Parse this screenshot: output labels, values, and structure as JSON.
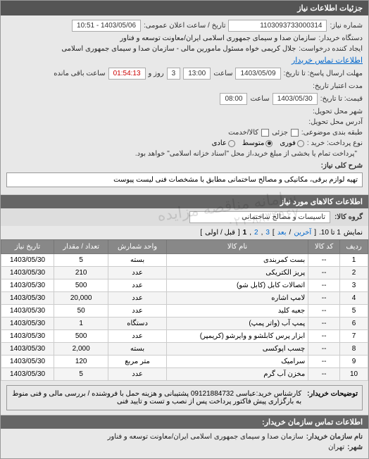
{
  "header": {
    "title": "جزئیات اطلاعات نیاز"
  },
  "info": {
    "req_no_label": "شماره نیاز:",
    "req_no": "1103093733000314",
    "announce_label": "تاریخ / ساعت اعلان عمومی:",
    "announce": "1403/05/06 - 10:51",
    "buyer_label": "دستگاه خریدار:",
    "buyer": "سازمان صدا و سیمای جمهوری اسلامی ایران/معاونت توسعه و فناور",
    "requester_label": "ایجاد کننده درخواست:",
    "requester": "جلال کریمی خواه مسئول مامورین مالی - سازمان صدا و سیمای جمهوری اسلامی",
    "contact_link": "اطلاعات تماس خریدار",
    "deadline_label": "مهلت ارسال پاسخ: تا تاریخ:",
    "deadline_date": "1403/05/09",
    "time_label": "ساعت",
    "deadline_time": "13:00",
    "days_remaining": "3",
    "days_label": "روز و",
    "time_remaining": "01:54:13",
    "remaining_label": "ساعت باقی مانده",
    "validity_label": "مدت اعتبار تاریخ:",
    "price_label": "قیمت: تا تاریخ:",
    "price_date": "1403/05/30",
    "price_time": "08:00",
    "delivery_city_label": "شهر محل تحویل:",
    "delivery_addr_label": "آدرس محل تحویل:",
    "budget_label": "طبقه بندی موضوعی:",
    "partial_label": "جزئی",
    "partial_check": "کالا/خدمت",
    "payment_type_label": "نوع پرداخت: خرید :",
    "payment_options": {
      "urgent": "فوری",
      "medium": "متوسط",
      "normal": "عادی"
    },
    "payment_note": "\"پرداخت تمام یا بخشی از مبلغ خرید،از محل \"اسناد خزانه اسلامی\" خواهد بود.",
    "desc_label": "شرح کلی نیاز:",
    "desc": "تهیه لوازم برقی، مکانیکی و مصالح ساختمانی مطابق با مشخصات فنی لیست پیوست"
  },
  "items_header": "اطلاعات کالاهای مورد نیاز",
  "group": {
    "label": "گروه کالا:",
    "value": "تاسیسات و مصالح ساختمانی"
  },
  "pager": {
    "display": "نمایش",
    "range": "1 تا 10.",
    "last": "آخرین",
    "next": "بعد",
    "pages": [
      "1",
      "2",
      "3"
    ],
    "first": "قبل / اولی",
    "bracket_open": "[",
    "bracket_close": "]"
  },
  "table": {
    "columns": [
      "ردیف",
      "کد کالا",
      "نام کالا",
      "واحد شمارش",
      "تعداد / مقدار",
      "تاریخ نیاز"
    ],
    "rows": [
      [
        "1",
        "--",
        "بست کمربندی",
        "بسته",
        "5",
        "1403/05/30"
      ],
      [
        "2",
        "--",
        "پریز الکتریکی",
        "عدد",
        "210",
        "1403/05/30"
      ],
      [
        "3",
        "--",
        "اتصالات کابل (کابل شو)",
        "عدد",
        "500",
        "1403/05/30"
      ],
      [
        "4",
        "--",
        "لامپ اشاره",
        "عدد",
        "20,000",
        "1403/05/30"
      ],
      [
        "5",
        "--",
        "جعبه کلید",
        "عدد",
        "50",
        "1403/05/30"
      ],
      [
        "6",
        "--",
        "پمپ آب (واتر پمپ)",
        "دستگاه",
        "1",
        "1403/05/30"
      ],
      [
        "7",
        "--",
        "ابزار پرس کابلشو و وایرشو (کریمپر)",
        "عدد",
        "500",
        "1403/05/30"
      ],
      [
        "8",
        "--",
        "چسب اپوکسی",
        "بسته",
        "2,000",
        "1403/05/30"
      ],
      [
        "9",
        "--",
        "سرامیک",
        "متر مربع",
        "120",
        "1403/05/30"
      ],
      [
        "10",
        "--",
        "مخزن آب گرم",
        "عدد",
        "5",
        "1403/05/30"
      ]
    ]
  },
  "buyer_note": {
    "label": "توضیحات خریدار:",
    "text": "کارشناس خرید:عباسی 09121884732 پشتیبانی و هزینه حمل با فروشنده / بررسی مالی و فنی منوط به بارگزاری پیش فاکتور پرداخت پس از نصب و تست و تایید فنی"
  },
  "footer": {
    "header": "اطلاعات تماس سازمان خریدار:",
    "org_label": "نام سازمان خریدار:",
    "org": "سازمان صدا و سیمای جمهوری اسلامی ایران/معاونت توسعه و فناور",
    "city_label": "شهر:",
    "city": "تهران"
  },
  "watermark": "سامانه مناقصه مزایده",
  "watermark2": "۰۲۱-۸۸۳۴۹۶۷"
}
